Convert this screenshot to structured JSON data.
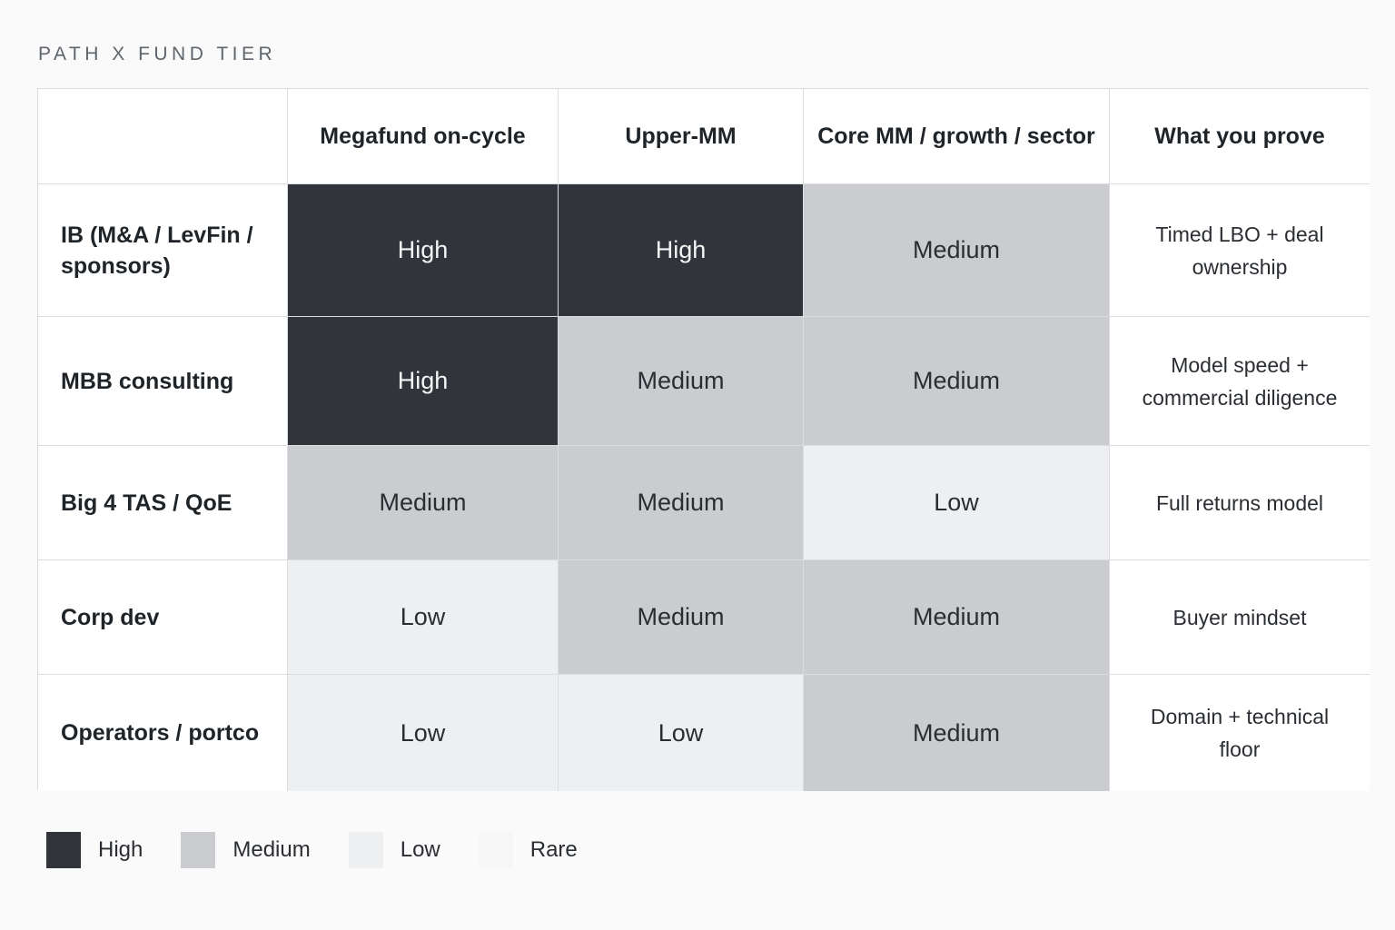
{
  "title": "PATH X FUND TIER",
  "chart_data": {
    "type": "heatmap",
    "title": "PATH X FUND TIER",
    "columns": [
      "Megafund on-cycle",
      "Upper-MM",
      "Core MM / growth / sector"
    ],
    "extra_column": "What you prove",
    "rows": [
      {
        "label": "IB (M&A / LevFin / sponsors)",
        "values": [
          "High",
          "High",
          "Medium"
        ],
        "prove": "Timed LBO + deal ownership"
      },
      {
        "label": "MBB consulting",
        "values": [
          "High",
          "Medium",
          "Medium"
        ],
        "prove": "Model speed + commercial diligence"
      },
      {
        "label": "Big 4 TAS / QoE",
        "values": [
          "Medium",
          "Medium",
          "Low"
        ],
        "prove": "Full returns model"
      },
      {
        "label": "Corp dev",
        "values": [
          "Low",
          "Medium",
          "Medium"
        ],
        "prove": "Buyer mindset"
      },
      {
        "label": "Operators / portco",
        "values": [
          "Low",
          "Low",
          "Medium"
        ],
        "prove": "Domain + technical floor"
      }
    ],
    "legend": [
      {
        "label": "High",
        "color": "#31353b"
      },
      {
        "label": "Medium",
        "color": "#cbccd0"
      },
      {
        "label": "Low",
        "color": "#eeeff1"
      },
      {
        "label": "Rare",
        "color": "#f6f6f7"
      }
    ],
    "legend_position": "bottom-left"
  }
}
